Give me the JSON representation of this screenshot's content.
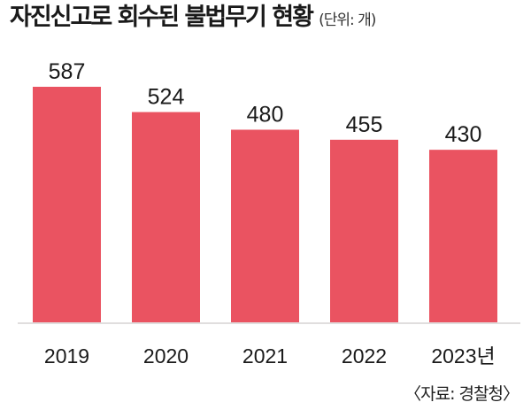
{
  "title": "자진신고로 회수된 불법무기 현황",
  "unit": "(단위: 개)",
  "source": "〈자료: 경찰청〉",
  "colors": {
    "bar": "#ea5361",
    "baseline": "#e0dede",
    "text": "#1a1a1a"
  },
  "chart_data": {
    "type": "bar",
    "title": "자진신고로 회수된 불법무기 현황",
    "unit": "(단위: 개)",
    "categories": [
      "2019",
      "2020",
      "2021",
      "2022",
      "2023년"
    ],
    "values": [
      587,
      524,
      480,
      455,
      430
    ],
    "xlabel": "",
    "ylabel": "",
    "ylim": [
      0,
      587
    ],
    "grid": false,
    "legend": "none"
  }
}
